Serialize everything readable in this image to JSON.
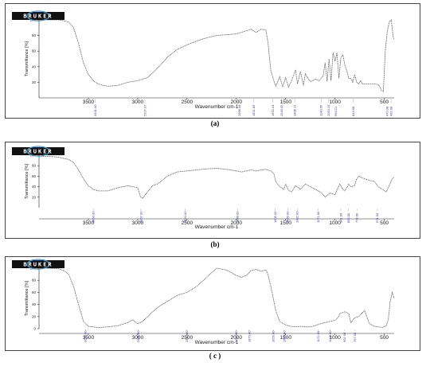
{
  "figure": {
    "captions": [
      "(a)",
      "(b)",
      "( c )"
    ]
  },
  "colors": {
    "line": "#555555",
    "peak_label": "#3a3aa8",
    "axis": "#222222",
    "logo_ring": "#3a9ad8"
  },
  "icons": [
    "bruker-logo-icon"
  ],
  "chart_data": [
    {
      "type": "line",
      "title": "",
      "logo": "BRUKER",
      "xlabel": "Wavenumber cm-1",
      "ylabel": "Transmittance [%]",
      "x_reversed": true,
      "xlim": [
        4000,
        400
      ],
      "ylim": [
        0,
        100
      ],
      "x_ticks": [
        3500,
        3000,
        2500,
        2000,
        1500,
        1000,
        500
      ],
      "y_ticks": [
        20,
        40,
        60,
        80,
        100
      ],
      "grid": false,
      "series": [
        {
          "x": [
            4000,
            3900,
            3800,
            3750,
            3700,
            3650,
            3600,
            3550,
            3500,
            3450,
            3400,
            3350,
            3300,
            3200,
            3100,
            3000,
            2900,
            2800,
            2700,
            2600,
            2500,
            2400,
            2300,
            2200,
            2100,
            2000,
            1950,
            1900,
            1850,
            1800,
            1750,
            1700,
            1680,
            1650,
            1620,
            1600,
            1560,
            1530,
            1500,
            1470,
            1440,
            1400,
            1380,
            1350,
            1320,
            1300,
            1260,
            1240,
            1200,
            1160,
            1120,
            1100,
            1080,
            1060,
            1040,
            1020,
            1000,
            980,
            960,
            940,
            920,
            900,
            880,
            860,
            840,
            820,
            800,
            780,
            760,
            740,
            720,
            700,
            650,
            600,
            560,
            530,
            510,
            490,
            470,
            450,
            430,
            410,
            400
          ],
          "y": [
            100,
            100,
            100,
            99,
            97,
            90,
            70,
            45,
            30,
            22,
            18,
            16,
            15,
            16,
            20,
            22,
            26,
            38,
            52,
            62,
            68,
            73,
            77,
            80,
            81,
            82,
            84,
            86,
            88,
            84,
            88,
            87,
            72,
            35,
            22,
            15,
            27,
            14,
            26,
            14,
            22,
            36,
            18,
            34,
            16,
            31,
            22,
            21,
            24,
            22,
            28,
            45,
            21,
            50,
            22,
            58,
            47,
            58,
            25,
            52,
            55,
            42,
            35,
            25,
            25,
            20,
            30,
            20,
            18,
            22,
            18,
            18,
            18,
            18,
            17,
            10,
            8,
            60,
            85,
            97,
            100,
            78,
            75
          ]
        }
      ],
      "peak_labels": [
        {
          "x": 3431,
          "text": "3431.00"
        },
        {
          "x": 2927,
          "text": "2927.07"
        },
        {
          "x": 1968,
          "text": "1968.38"
        },
        {
          "x": 1822,
          "text": "1821.86"
        },
        {
          "x": 1632,
          "text": "1632.04"
        },
        {
          "x": 1540,
          "text": "1540.05"
        },
        {
          "x": 1408,
          "text": "1408.12"
        },
        {
          "x": 1140,
          "text": "1140.66"
        },
        {
          "x": 1064,
          "text": "1064.13"
        },
        {
          "x": 994,
          "text": "994.21"
        },
        {
          "x": 813,
          "text": "813.98"
        },
        {
          "x": 470,
          "text": "470.98"
        },
        {
          "x": 432,
          "text": "432.08"
        }
      ]
    },
    {
      "type": "line",
      "title": "",
      "logo": "BRUKER",
      "xlabel": "Wavenumber cm-1",
      "ylabel": "Transmittance [%]",
      "x_reversed": true,
      "xlim": [
        4000,
        400
      ],
      "ylim": [
        0,
        100
      ],
      "x_ticks": [
        3500,
        3000,
        2500,
        2000,
        1500,
        1000,
        500
      ],
      "y_ticks": [
        20,
        40,
        60,
        80,
        100
      ],
      "grid": false,
      "series": [
        {
          "x": [
            4000,
            3900,
            3850,
            3800,
            3750,
            3700,
            3650,
            3600,
            3550,
            3500,
            3450,
            3400,
            3300,
            3200,
            3100,
            3050,
            3000,
            2970,
            2950,
            2900,
            2850,
            2800,
            2700,
            2600,
            2500,
            2400,
            2300,
            2200,
            2100,
            2000,
            1950,
            1900,
            1850,
            1800,
            1750,
            1700,
            1650,
            1620,
            1600,
            1560,
            1520,
            1500,
            1470,
            1440,
            1400,
            1350,
            1300,
            1250,
            1200,
            1150,
            1120,
            1100,
            1050,
            1000,
            970,
            950,
            920,
            900,
            860,
            840,
            800,
            780,
            760,
            700,
            650,
            600,
            560,
            520,
            480,
            450,
            420,
            400
          ],
          "y": [
            98,
            98,
            97,
            96,
            94,
            92,
            86,
            72,
            55,
            42,
            35,
            32,
            32,
            38,
            42,
            40,
            38,
            20,
            18,
            30,
            42,
            45,
            60,
            68,
            70,
            72,
            74,
            75,
            73,
            70,
            68,
            70,
            72,
            70,
            72,
            73,
            70,
            65,
            50,
            40,
            35,
            45,
            33,
            30,
            42,
            35,
            45,
            40,
            35,
            30,
            25,
            20,
            28,
            25,
            38,
            45,
            35,
            32,
            45,
            40,
            42,
            55,
            60,
            55,
            52,
            50,
            40,
            35,
            30,
            42,
            55,
            58
          ]
        }
      ],
      "peak_labels": [
        {
          "x": 3450,
          "text": "3450.00"
        },
        {
          "x": 2967,
          "text": "2967.00"
        },
        {
          "x": 2520,
          "text": "2520.00"
        },
        {
          "x": 1988,
          "text": "1988.00"
        },
        {
          "x": 1605,
          "text": "1605.00"
        },
        {
          "x": 1480,
          "text": "1480.00"
        },
        {
          "x": 1382,
          "text": "1382.00"
        },
        {
          "x": 1171,
          "text": "1171.00"
        },
        {
          "x": 941,
          "text": "941.00"
        },
        {
          "x": 865,
          "text": "865.00"
        },
        {
          "x": 778,
          "text": "778.00"
        },
        {
          "x": 571,
          "text": "571.00"
        }
      ]
    },
    {
      "type": "line",
      "title": "",
      "logo": "BRUKER",
      "xlabel": "Wavenumber cm-1",
      "ylabel": "Transmittance [%]",
      "x_reversed": true,
      "xlim": [
        4000,
        400
      ],
      "ylim": [
        0,
        100
      ],
      "x_ticks": [
        3500,
        3000,
        2500,
        2000,
        1500,
        1000,
        500
      ],
      "y_ticks": [
        0,
        20,
        40,
        60,
        80,
        100
      ],
      "grid": false,
      "series": [
        {
          "x": [
            4000,
            3900,
            3800,
            3750,
            3700,
            3650,
            3600,
            3550,
            3500,
            3400,
            3300,
            3200,
            3100,
            3050,
            3000,
            2950,
            2900,
            2800,
            2700,
            2600,
            2500,
            2400,
            2300,
            2200,
            2100,
            2000,
            1950,
            1900,
            1850,
            1800,
            1750,
            1700,
            1680,
            1650,
            1600,
            1560,
            1520,
            1500,
            1450,
            1400,
            1350,
            1300,
            1250,
            1200,
            1150,
            1100,
            1050,
            1000,
            970,
            950,
            900,
            860,
            840,
            800,
            760,
            700,
            650,
            600,
            560,
            520,
            480,
            460,
            440,
            420,
            400
          ],
          "y": [
            100,
            100,
            99,
            96,
            90,
            70,
            40,
            12,
            4,
            2,
            3,
            5,
            10,
            15,
            8,
            12,
            20,
            35,
            45,
            55,
            60,
            70,
            85,
            100,
            97,
            88,
            85,
            88,
            96,
            98,
            95,
            97,
            90,
            70,
            30,
            12,
            8,
            6,
            4,
            3,
            4,
            3,
            3,
            5,
            8,
            10,
            12,
            14,
            18,
            25,
            28,
            25,
            10,
            18,
            20,
            30,
            8,
            4,
            3,
            2,
            5,
            15,
            45,
            60,
            50
          ]
        }
      ],
      "peak_labels": [
        {
          "x": 3530,
          "text": "3530.00"
        },
        {
          "x": 2995,
          "text": "2995.00"
        },
        {
          "x": 2500,
          "text": "2500.00"
        },
        {
          "x": 2000,
          "text": "2000.00"
        },
        {
          "x": 1870,
          "text": "1870.00"
        },
        {
          "x": 1626,
          "text": "1626.00"
        },
        {
          "x": 1515,
          "text": "1515.00"
        },
        {
          "x": 1172,
          "text": "1172.00"
        },
        {
          "x": 1048,
          "text": "1048.00"
        },
        {
          "x": 902,
          "text": "902.00"
        },
        {
          "x": 797,
          "text": "797.00"
        }
      ]
    }
  ]
}
